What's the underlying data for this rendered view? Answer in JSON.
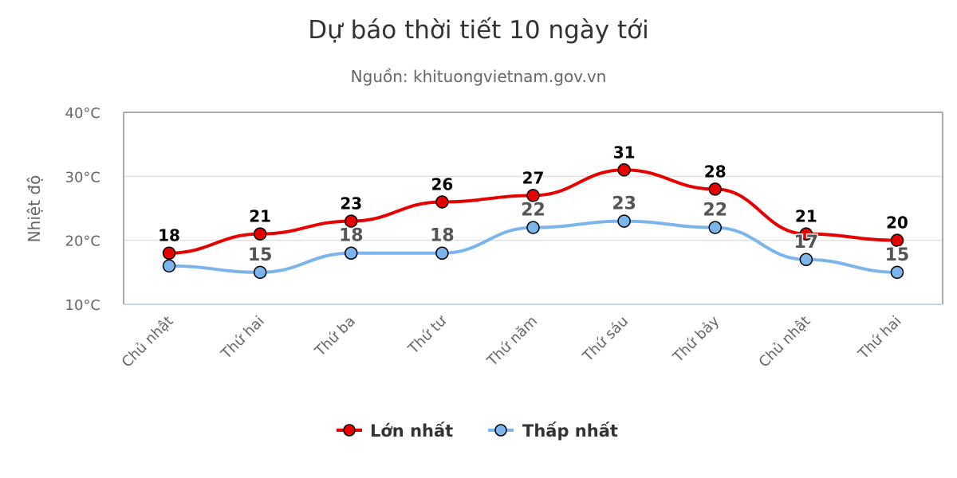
{
  "chart_data": {
    "type": "line",
    "title": "Dự báo thời tiết 10 ngày tới",
    "subtitle": "Nguồn: khituongvietnam.gov.vn",
    "ylabel": "Nhiệt độ",
    "xlabel": "",
    "ylim": [
      10,
      40
    ],
    "yticks": [
      "10°C",
      "20°C",
      "30°C",
      "40°C"
    ],
    "grid": true,
    "legend": "bottom",
    "categories": [
      "Chủ nhật",
      "Thứ hai",
      "Thứ ba",
      "Thứ tư",
      "Thứ năm",
      "Thứ sáu",
      "Thứ bảy",
      "Chủ nhật",
      "Thứ hai"
    ],
    "series": [
      {
        "name": "Lớn nhất",
        "color": "#e60000",
        "values": [
          18,
          21,
          23,
          26,
          27,
          31,
          28,
          21,
          20
        ],
        "labels_shown": [
          true,
          true,
          true,
          true,
          true,
          true,
          true,
          true,
          true
        ]
      },
      {
        "name": "Thấp nhất",
        "color": "#7cb5ec",
        "values": [
          16,
          15,
          18,
          18,
          22,
          23,
          22,
          17,
          15
        ],
        "labels_shown": [
          false,
          true,
          true,
          true,
          true,
          true,
          true,
          true,
          true
        ]
      }
    ]
  }
}
